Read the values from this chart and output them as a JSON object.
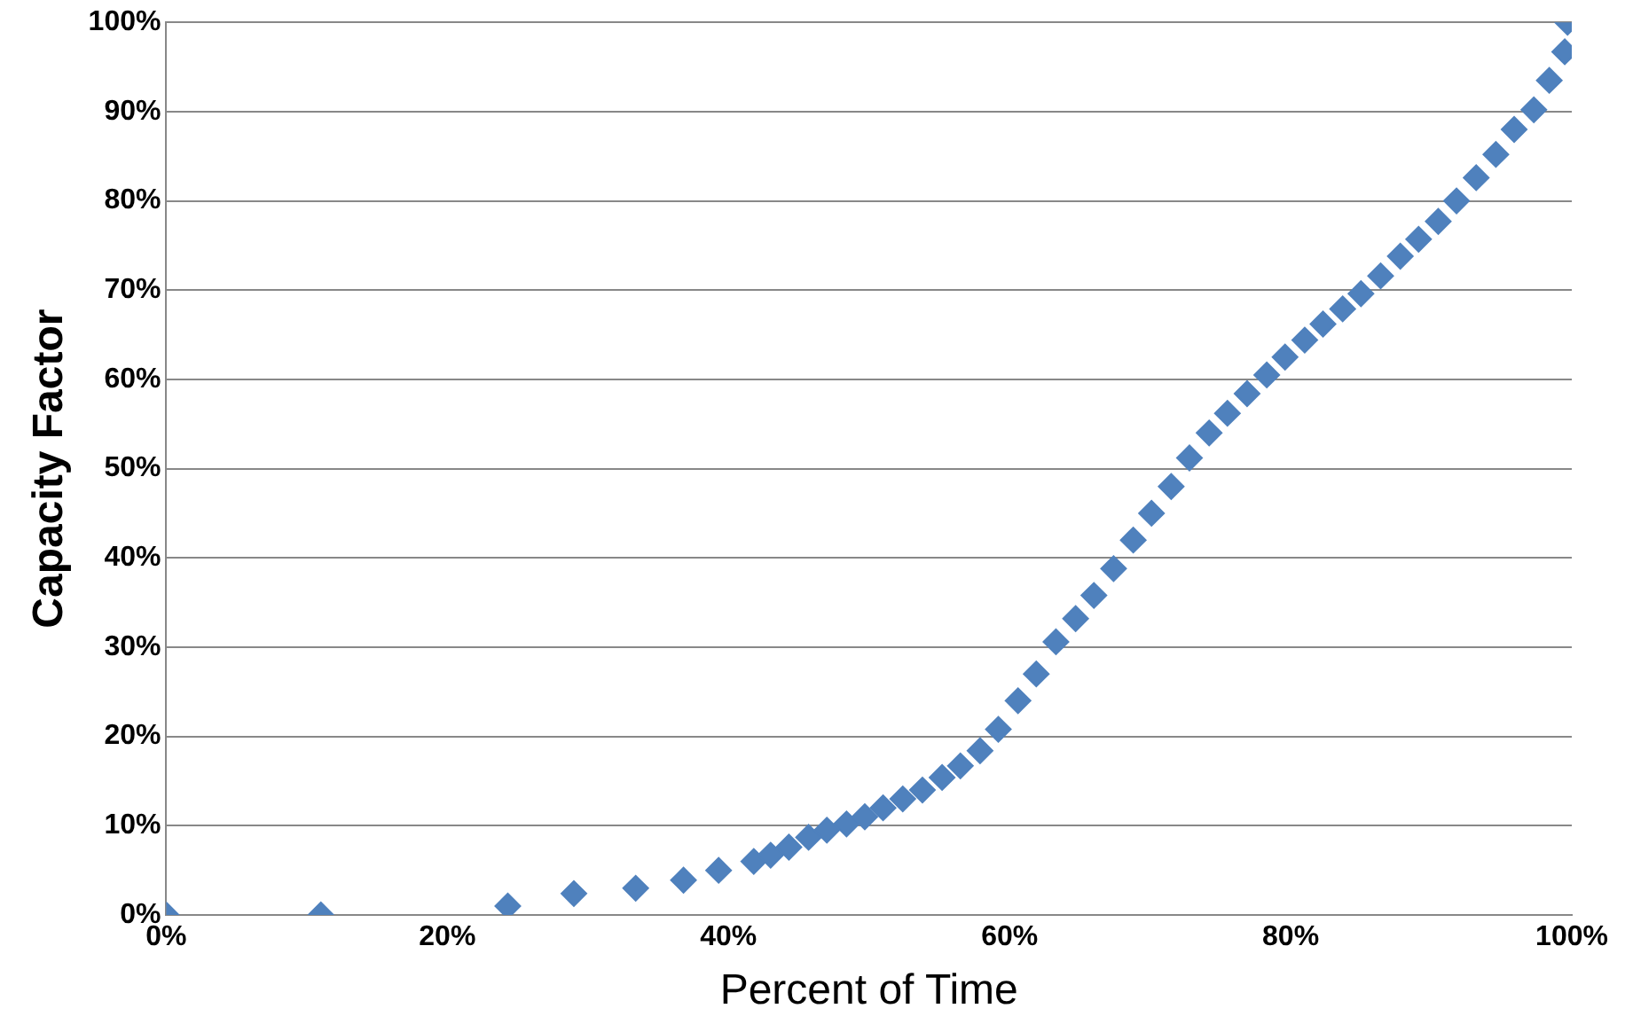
{
  "chart_data": {
    "type": "scatter",
    "xlabel": "Percent of Time",
    "ylabel": "Capacity Factor",
    "marker": "diamond",
    "grid": "y",
    "legend": false,
    "xlim": [
      0,
      100
    ],
    "ylim": [
      0,
      100
    ],
    "xticks": [
      {
        "value": 0,
        "label": "0%"
      },
      {
        "value": 20,
        "label": "20%"
      },
      {
        "value": 40,
        "label": "40%"
      },
      {
        "value": 60,
        "label": "60%"
      },
      {
        "value": 80,
        "label": "80%"
      },
      {
        "value": 100,
        "label": "100%"
      }
    ],
    "yticks": [
      {
        "value": 0,
        "label": "0%"
      },
      {
        "value": 10,
        "label": "10%"
      },
      {
        "value": 20,
        "label": "20%"
      },
      {
        "value": 30,
        "label": "30%"
      },
      {
        "value": 40,
        "label": "40%"
      },
      {
        "value": 50,
        "label": "50%"
      },
      {
        "value": 60,
        "label": "60%"
      },
      {
        "value": 70,
        "label": "70%"
      },
      {
        "value": 80,
        "label": "80%"
      },
      {
        "value": 90,
        "label": "90%"
      },
      {
        "value": 100,
        "label": "100%"
      }
    ],
    "series": [
      {
        "color": "#4f81bd",
        "x": [
          0,
          11,
          24.3,
          29,
          33.4,
          36.8,
          39.3,
          41.8,
          43,
          44.3,
          45.7,
          47,
          48.4,
          49.7,
          51,
          52.4,
          53.8,
          55.2,
          56.5,
          57.9,
          59.2,
          60.6,
          61.9,
          63.3,
          64.7,
          66,
          67.4,
          68.8,
          70.1,
          71.5,
          72.8,
          74.2,
          75.5,
          76.9,
          78.3,
          79.6,
          81,
          82.3,
          83.7,
          85,
          86.4,
          87.8,
          89.1,
          90.5,
          91.8,
          93.2,
          94.6,
          95.9,
          97.3,
          98.4,
          99.5,
          99.7
        ],
        "values": [
          0,
          0,
          1,
          2.4,
          3,
          3.9,
          5,
          6,
          6.7,
          7.6,
          8.7,
          9.5,
          10.2,
          11,
          12,
          13,
          14,
          15.4,
          16.7,
          18.4,
          20.8,
          24,
          27,
          30.6,
          33.2,
          35.8,
          38.8,
          42,
          45,
          48,
          51.2,
          54,
          56.2,
          58.4,
          60.5,
          62.5,
          64.4,
          66.2,
          67.9,
          69.6,
          71.6,
          73.8,
          75.7,
          77.7,
          80,
          82.6,
          85.2,
          88,
          90.2,
          93.5,
          96.7,
          100
        ]
      }
    ]
  }
}
